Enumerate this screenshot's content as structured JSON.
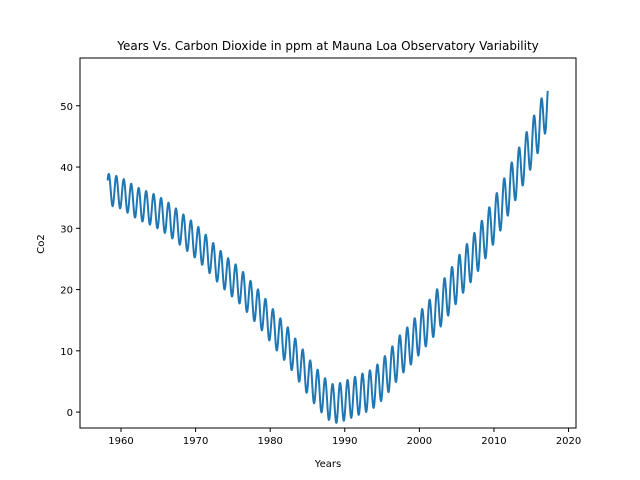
{
  "chart_data": {
    "type": "line",
    "title": "Years Vs. Carbon Dioxide in ppm at Mauna Loa Observatory Variability",
    "xlabel": "Years",
    "ylabel": "Co2",
    "xlim": [
      1954.5,
      2021.0
    ],
    "ylim": [
      -2.6,
      57.8
    ],
    "xticks": [
      1960,
      1970,
      1980,
      1990,
      2000,
      2010,
      2020
    ],
    "yticks": [
      0,
      10,
      20,
      30,
      40,
      50
    ],
    "grid": false,
    "series_color": "#1f77b4",
    "series": [
      {
        "x": [
          1958.2,
          1958.5,
          1959.5,
          1960.5,
          1961.5,
          1962.5,
          1963.5,
          1964.5,
          1965.5,
          1966.5,
          1967.5,
          1968.5,
          1969.5,
          1970.5,
          1971.5,
          1972.5,
          1973.5,
          1974.5,
          1975.5,
          1976.5,
          1977.5,
          1978.5,
          1979.5,
          1980.5,
          1981.5,
          1982.5,
          1983.5,
          1984.5,
          1985.5,
          1986.5,
          1987.5,
          1988.5,
          1989.5,
          1990.5,
          1991.5,
          1992.5,
          1993.5,
          1994.5,
          1995.5,
          1996.5,
          1997.5,
          1998.5,
          1999.5,
          2000.5,
          2001.5,
          2002.5,
          2003.5,
          2004.5,
          2005.5,
          2006.5,
          2007.5,
          2008.5,
          2009.5,
          2010.5,
          2011.5,
          2012.5,
          2013.5,
          2014.5,
          2015.5,
          2016.5,
          2017.2
        ],
        "y": [
          36.6,
          36.2,
          36.0,
          35.4,
          34.6,
          33.9,
          33.4,
          32.9,
          32.2,
          31.4,
          30.4,
          29.4,
          28.4,
          27.3,
          26.0,
          24.6,
          23.3,
          22.1,
          21.1,
          19.8,
          18.3,
          16.9,
          15.3,
          13.6,
          12.1,
          10.6,
          8.7,
          6.9,
          5.1,
          3.6,
          2.2,
          1.3,
          1.6,
          2.1,
          2.6,
          3.1,
          3.6,
          4.6,
          6.0,
          7.6,
          9.4,
          10.6,
          12.1,
          13.6,
          15.1,
          16.8,
          18.6,
          20.4,
          22.4,
          24.1,
          25.9,
          27.9,
          30.1,
          32.4,
          34.8,
          37.4,
          39.8,
          42.3,
          45.0,
          47.8,
          50.6
        ]
      }
    ]
  }
}
